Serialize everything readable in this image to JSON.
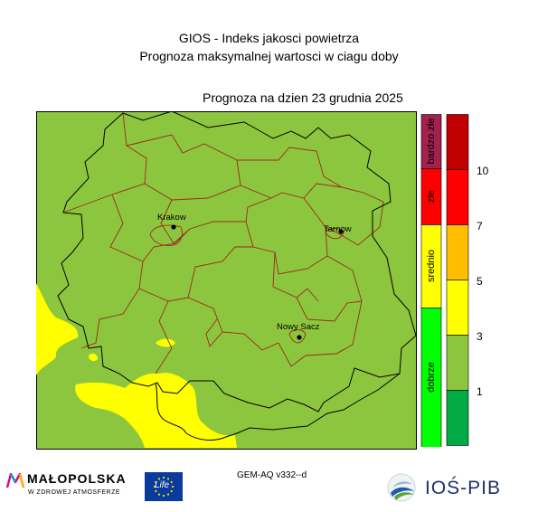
{
  "header": {
    "title": "GIOS - Indeks jakosci powietrza",
    "subtitle": "Prognoza maksymalnej wartosci w ciagu doby",
    "forecast_date": "Prognoza na dzien  23 grudnia 2025"
  },
  "map": {
    "background_color": "#8cc63f",
    "low_value_color": "#ffff00",
    "cities": [
      {
        "name": "Krakow"
      },
      {
        "name": "Tarnow"
      },
      {
        "name": "Nowy Sacz"
      }
    ]
  },
  "legend": {
    "categories": [
      {
        "label": "bardzo złe",
        "color": "#a3204f"
      },
      {
        "label": "złe",
        "color": "#ff0000"
      },
      {
        "label": "srednio",
        "color": "#ffff00"
      },
      {
        "label": "dobrze",
        "color": "#00ff00"
      }
    ],
    "scale_colors": [
      "#c00000",
      "#ff0000",
      "#ffbf00",
      "#ffff00",
      "#8cc63f",
      "#00aa44"
    ],
    "ticks": [
      "10",
      "7",
      "5",
      "3",
      "1"
    ]
  },
  "footer": {
    "model_label": "GEM-AQ v332--d",
    "malopolska_name": "MAŁOPOLSKA",
    "malopolska_tagline": "W ZDROWEJ ATMOSFERZE",
    "life_label": "Life",
    "ios_name": "IOŚ-PIB"
  }
}
